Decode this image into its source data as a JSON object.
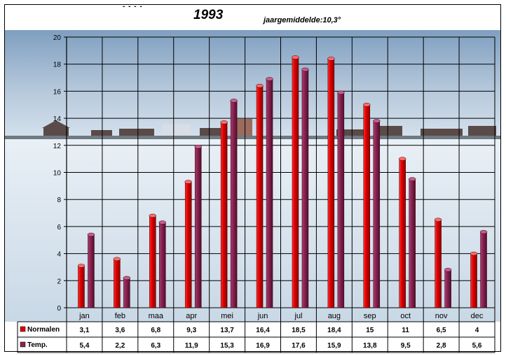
{
  "header": {
    "dashes": "- - - -",
    "title": "1993",
    "subtitle": "jaargemiddelde:10,3°"
  },
  "colors": {
    "series1": "#e00000",
    "series2": "#8b2252",
    "grid": "#000000"
  },
  "chart_data": {
    "type": "bar",
    "title": "1993",
    "subtitle": "jaargemiddelde:10,3°",
    "categories": [
      "jan",
      "feb",
      "maa",
      "apr",
      "mei",
      "jun",
      "jul",
      "aug",
      "sep",
      "oct",
      "nov",
      "dec"
    ],
    "series": [
      {
        "name": "Normalen",
        "values": [
          3.1,
          3.6,
          6.8,
          9.3,
          13.7,
          16.4,
          18.5,
          18.4,
          15,
          11,
          6.5,
          4
        ],
        "labels": [
          "3,1",
          "3,6",
          "6,8",
          "9,3",
          "13,7",
          "16,4",
          "18,5",
          "18,4",
          "15",
          "11",
          "6,5",
          "4"
        ]
      },
      {
        "name": "Temp.",
        "values": [
          5.4,
          2.2,
          6.3,
          11.9,
          15.3,
          16.9,
          17.6,
          15.9,
          13.8,
          9.5,
          2.8,
          5.6
        ],
        "labels": [
          "5,4",
          "2,2",
          "6,3",
          "11,9",
          "15,3",
          "16,9",
          "17,6",
          "15,9",
          "13,8",
          "9,5",
          "2,8",
          "5,6"
        ]
      }
    ],
    "yticks": [
      "0",
      "2",
      "4",
      "6",
      "8",
      "10",
      "12",
      "14",
      "16",
      "18",
      "20"
    ],
    "ylim": [
      0,
      20
    ],
    "grid": true,
    "legend": "data-table-left",
    "background": "winter-snow-landscape-photo"
  }
}
